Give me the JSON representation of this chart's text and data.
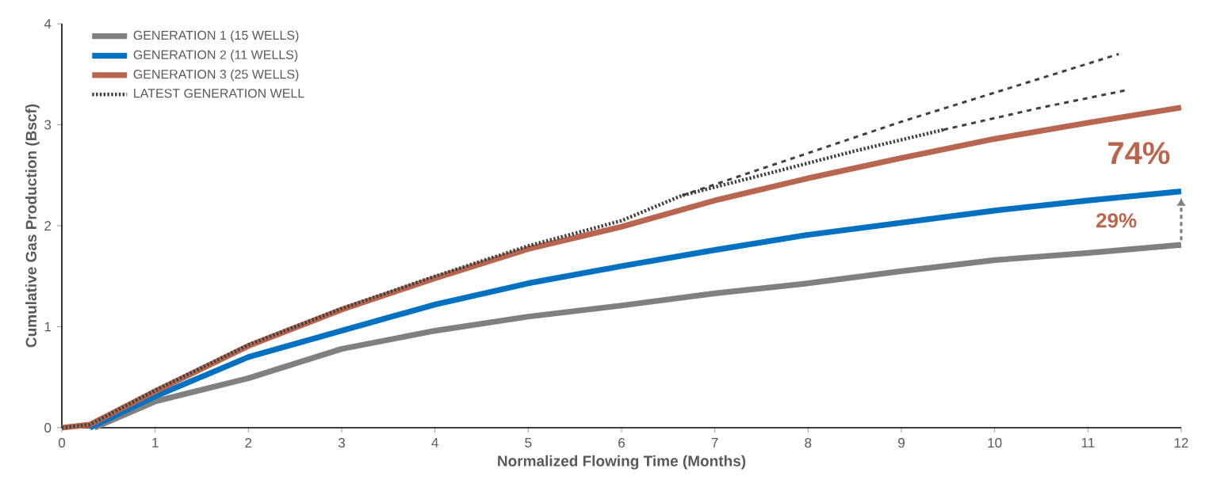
{
  "chart_data": {
    "type": "line",
    "xlabel": "Normalized Flowing Time (Months)",
    "ylabel": "Cumulative Gas Production (Bscf)",
    "xlim": [
      0,
      12
    ],
    "ylim": [
      0,
      4
    ],
    "xticks": [
      0,
      1,
      2,
      3,
      4,
      5,
      6,
      7,
      8,
      9,
      10,
      11,
      12
    ],
    "yticks": [
      0,
      1,
      2,
      3,
      4
    ],
    "grid": false,
    "legend": "top left",
    "marker": "none",
    "annotations": [
      "74%",
      "29%"
    ],
    "series": [
      {
        "name": "GENERATION 1 (15 WELLS)",
        "color": "#808080",
        "line_style": "solid",
        "x": [
          0.35,
          1,
          2,
          3,
          4,
          5,
          6,
          7,
          8,
          9,
          10,
          11,
          12
        ],
        "values": [
          0,
          0.26,
          0.49,
          0.78,
          0.96,
          1.1,
          1.21,
          1.33,
          1.43,
          1.55,
          1.66,
          1.73,
          1.81
        ]
      },
      {
        "name": "GENERATION 2 (11 WELLS)",
        "color": "#0070c0",
        "line_style": "solid",
        "x": [
          0.3,
          1,
          2,
          3,
          4,
          5,
          6,
          7,
          8,
          9,
          10,
          11,
          12
        ],
        "values": [
          0,
          0.31,
          0.7,
          0.96,
          1.22,
          1.43,
          1.6,
          1.76,
          1.91,
          2.03,
          2.15,
          2.25,
          2.34
        ]
      },
      {
        "name": "GENERATION 3 (25 WELLS)",
        "color": "#b8664f",
        "line_style": "solid",
        "x": [
          0,
          0.3,
          1,
          2,
          3,
          4,
          5,
          6,
          7,
          8,
          9,
          10,
          11,
          12
        ],
        "values": [
          0,
          0.03,
          0.36,
          0.81,
          1.17,
          1.48,
          1.77,
          1.99,
          2.25,
          2.47,
          2.67,
          2.86,
          3.02,
          3.17
        ]
      },
      {
        "name": "LATEST GENERATION WELL",
        "color": "#404040",
        "line_style": "dotted",
        "x": [
          0,
          0.3,
          1,
          2,
          3,
          4,
          5,
          6,
          6.65,
          7.5,
          8.5,
          9.45
        ],
        "values": [
          0,
          0.03,
          0.37,
          0.82,
          1.18,
          1.5,
          1.8,
          2.05,
          2.3,
          2.5,
          2.74,
          2.95
        ]
      },
      {
        "color": "#404040",
        "line_style": "dashed",
        "x": [
          6.65,
          9,
          11.33
        ],
        "values": [
          2.3,
          3.03,
          3.7
        ]
      },
      {
        "color": "#404040",
        "line_style": "dashed",
        "x": [
          9.45,
          10.5,
          11.4
        ],
        "values": [
          2.95,
          3.17,
          3.34
        ]
      }
    ]
  }
}
